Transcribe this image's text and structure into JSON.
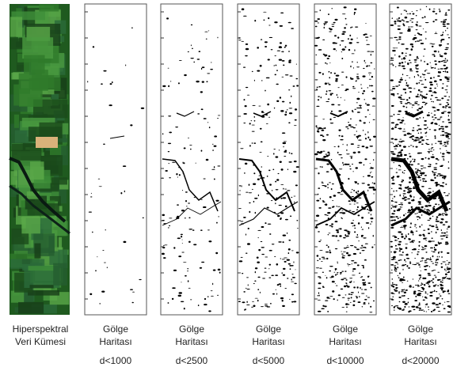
{
  "panels": [
    {
      "caption": [
        "Hiperspektral",
        "Veri Kümesi"
      ]
    },
    {
      "caption": [
        "Gölge",
        "Haritası"
      ],
      "threshold": "d<1000"
    },
    {
      "caption": [
        "Gölge",
        "Haritası"
      ],
      "threshold": "d<2500"
    },
    {
      "caption": [
        "Gölge",
        "Haritası"
      ],
      "threshold": "d<5000"
    },
    {
      "caption": [
        "Gölge",
        "Haritası"
      ],
      "threshold": "d<10000"
    },
    {
      "caption": [
        "Gölge",
        "Haritası"
      ],
      "threshold": "d<20000"
    }
  ]
}
